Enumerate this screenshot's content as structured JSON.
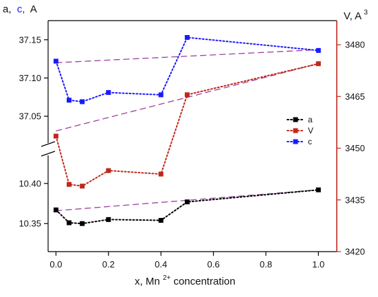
{
  "chart_data": {
    "type": "line",
    "x": [
      0.0,
      0.05,
      0.1,
      0.2,
      0.4,
      0.5,
      1.0
    ],
    "xlabel": "x, Mn",
    "xlabel_sup": "2+",
    "xlabel_suffix": "concentration",
    "left_axis_title": {
      "a": "a,",
      "c": "c,",
      "unit": "A"
    },
    "right_axis_title": {
      "text": "V, A",
      "sup": "3"
    },
    "x_ticks": [
      "0.0",
      "0.2",
      "0.4",
      "0.6",
      "0.8",
      "1.0"
    ],
    "upper_left_ticks": [
      "37.05",
      "37.10",
      "37.15"
    ],
    "lower_left_ticks": [
      "10.35",
      "10.40"
    ],
    "right_ticks": [
      "3420",
      "3435",
      "3450",
      "3465",
      "3480"
    ],
    "xlim": [
      -0.03,
      1.07
    ],
    "upper_left_ylim": [
      37.015,
      37.175
    ],
    "lower_left_ylim": [
      10.315,
      10.435
    ],
    "right_ylim": [
      3420,
      3487
    ],
    "series": [
      {
        "name": "a",
        "axis": "lower_left",
        "color": "#000000",
        "values": [
          10.367,
          10.351,
          10.35,
          10.355,
          10.354,
          10.377,
          10.392
        ],
        "fit": [
          10.366,
          10.392
        ]
      },
      {
        "name": "V",
        "axis": "right",
        "color": "#c0281a",
        "values": [
          3453.5,
          3439.5,
          3439.0,
          3443.5,
          3442.5,
          3465.5,
          3474.5
        ],
        "fit": [
          3455.0,
          3474.5
        ]
      },
      {
        "name": "c",
        "axis": "upper_left",
        "color": "#1a1aff",
        "values": [
          37.122,
          37.071,
          37.069,
          37.081,
          37.078,
          37.153,
          37.136
        ],
        "fit": [
          37.12,
          37.137
        ]
      }
    ],
    "fit_color": "#9b3fa0",
    "legend": {
      "placement": "right-middle",
      "entries": [
        "a",
        "V",
        "c"
      ]
    },
    "grid": false
  }
}
